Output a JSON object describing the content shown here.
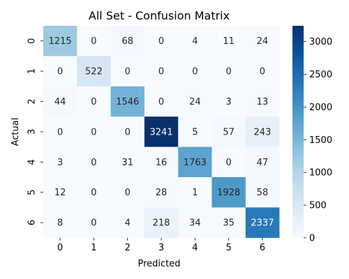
{
  "chart_data": {
    "type": "heatmap",
    "title": "All Set - Confusion Matrix",
    "xlabel": "Predicted",
    "ylabel": "Actual",
    "x_categories": [
      "0",
      "1",
      "2",
      "3",
      "4",
      "5",
      "6"
    ],
    "y_categories": [
      "0",
      "1",
      "2",
      "3",
      "4",
      "5",
      "6"
    ],
    "values": [
      [
        1215,
        0,
        68,
        0,
        4,
        11,
        24
      ],
      [
        0,
        522,
        0,
        0,
        0,
        0,
        0
      ],
      [
        44,
        0,
        1546,
        0,
        24,
        3,
        13
      ],
      [
        0,
        0,
        0,
        3241,
        5,
        57,
        243
      ],
      [
        3,
        0,
        31,
        16,
        1763,
        0,
        47
      ],
      [
        12,
        0,
        0,
        28,
        1,
        1928,
        58
      ],
      [
        8,
        0,
        4,
        218,
        34,
        35,
        2337
      ]
    ],
    "colorbar": {
      "min": 0,
      "max": 3241,
      "ticks": [
        0,
        500,
        1000,
        1500,
        2000,
        2500,
        3000
      ]
    },
    "colormap": "Blues"
  }
}
